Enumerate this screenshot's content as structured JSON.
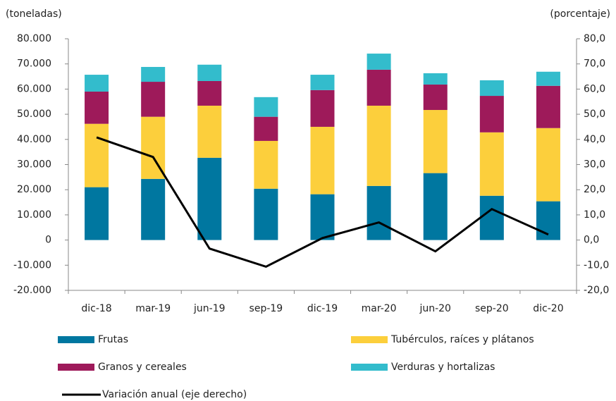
{
  "chart_data": {
    "type": "bar",
    "stacked": true,
    "y_label": "(toneladas)",
    "y2_label": "(porcentaje)",
    "categories": [
      "dic-18",
      "mar-19",
      "jun-19",
      "sep-19",
      "dic-19",
      "mar-20",
      "jun-20",
      "sep-20",
      "dic-20"
    ],
    "series": [
      {
        "name": "Frutas",
        "color": "#0077a0",
        "values": [
          21000,
          24300,
          32700,
          20400,
          18200,
          21500,
          26600,
          17600,
          15400
        ]
      },
      {
        "name": "Tubérculos, raíces y plátanos",
        "color": "#fccf3c",
        "values": [
          25200,
          24700,
          20700,
          19000,
          26800,
          31900,
          25100,
          25200,
          29100
        ]
      },
      {
        "name": "Granos y cereales",
        "color": "#9e1a5a",
        "values": [
          12800,
          13900,
          9800,
          9600,
          14600,
          14300,
          10100,
          14500,
          16800
        ]
      },
      {
        "name": "Verduras y hortalizas",
        "color": "#33bccc",
        "values": [
          6700,
          5900,
          6500,
          7800,
          6100,
          6400,
          4500,
          6200,
          5600
        ]
      },
      {
        "name": "Variación anual (eje derecho)",
        "color": "#000000",
        "type": "line",
        "axis": "y2",
        "values": [
          40.8,
          33.0,
          -3.4,
          -10.6,
          0.8,
          7.0,
          -4.5,
          12.3,
          2.2
        ]
      }
    ],
    "ylim": [
      -20000,
      80000
    ],
    "yticks": [
      {
        "value": -20000,
        "label": "-20.000"
      },
      {
        "value": -10000,
        "label": "-10.000"
      },
      0,
      {
        "value": 10000,
        "label": "10.000"
      },
      {
        "value": 20000,
        "label": "20.000"
      },
      {
        "value": 30000,
        "label": "30.000"
      },
      {
        "value": 40000,
        "label": "40.000"
      },
      {
        "value": 50000,
        "label": "50.000"
      },
      {
        "value": 60000,
        "label": "60.000"
      },
      {
        "value": 70000,
        "label": "70.000"
      },
      {
        "value": 80000,
        "label": "80.000"
      }
    ],
    "y2lim": [
      -20,
      80
    ],
    "y2ticks": [
      {
        "value": -20,
        "label": "-20,0"
      },
      {
        "value": -10,
        "label": "-10,0"
      },
      {
        "value": 0,
        "label": "0,0"
      },
      {
        "value": 10,
        "label": "10,0"
      },
      {
        "value": 20,
        "label": "20,0"
      },
      {
        "value": 30,
        "label": "30,0"
      },
      {
        "value": 40,
        "label": "40,0"
      },
      {
        "value": 50,
        "label": "50,0"
      },
      {
        "value": 60,
        "label": "60,0"
      },
      {
        "value": 70,
        "label": "70,0"
      },
      {
        "value": 80,
        "label": "80,0"
      }
    ]
  }
}
